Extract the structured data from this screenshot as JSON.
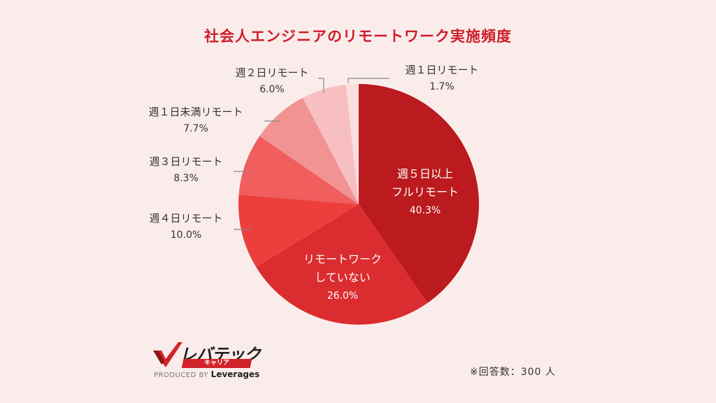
{
  "colors": {
    "background": "#fbecec",
    "title": "#cc1f2a",
    "slice_full_remote": "#bb1a1f",
    "slice_no_remote": "#db2c30",
    "slice_4days": "#ec3f3c",
    "slice_3days": "#f05e5e",
    "slice_lt1day": "#f29393",
    "slice_2days": "#f8bfc2",
    "slice_1day": "#fbdedf",
    "leader_line": "#8a8a8a"
  },
  "footnote": "※回答数：300 人",
  "logo": {
    "name": "レバテック",
    "sub": "キャリア",
    "produced_by_prefix": "PRODUCED BY",
    "produced_by_brand": "Leverages"
  },
  "chart_data": {
    "type": "pie",
    "title": "社会人エンジニアのリモートワーク実施頻度",
    "start_angle_deg": 0,
    "direction": "clockwise",
    "slices": [
      {
        "key": "full_remote",
        "label_lines": [
          "週５日以上",
          "フルリモート"
        ],
        "value": 40.3,
        "value_text": "40.3%",
        "label_position": "inside",
        "color_key": "slice_full_remote"
      },
      {
        "key": "no_remote",
        "label_lines": [
          "リモートワーク",
          "していない"
        ],
        "value": 26.0,
        "value_text": "26.0%",
        "label_position": "inside",
        "color_key": "slice_no_remote"
      },
      {
        "key": "4days",
        "label_lines": [
          "週４日リモート"
        ],
        "value": 10.0,
        "value_text": "10.0%",
        "label_position": "outside",
        "color_key": "slice_4days"
      },
      {
        "key": "3days",
        "label_lines": [
          "週３日リモート"
        ],
        "value": 8.3,
        "value_text": "8.3%",
        "label_position": "outside",
        "color_key": "slice_3days"
      },
      {
        "key": "lt1day",
        "label_lines": [
          "週１日未満リモート"
        ],
        "value": 7.7,
        "value_text": "7.7%",
        "label_position": "outside",
        "color_key": "slice_lt1day"
      },
      {
        "key": "2days",
        "label_lines": [
          "週２日リモート"
        ],
        "value": 6.0,
        "value_text": "6.0%",
        "label_position": "outside",
        "color_key": "slice_2days"
      },
      {
        "key": "1day",
        "label_lines": [
          "週１日リモート"
        ],
        "value": 1.7,
        "value_text": "1.7%",
        "label_position": "outside",
        "color_key": "slice_1day"
      }
    ]
  }
}
